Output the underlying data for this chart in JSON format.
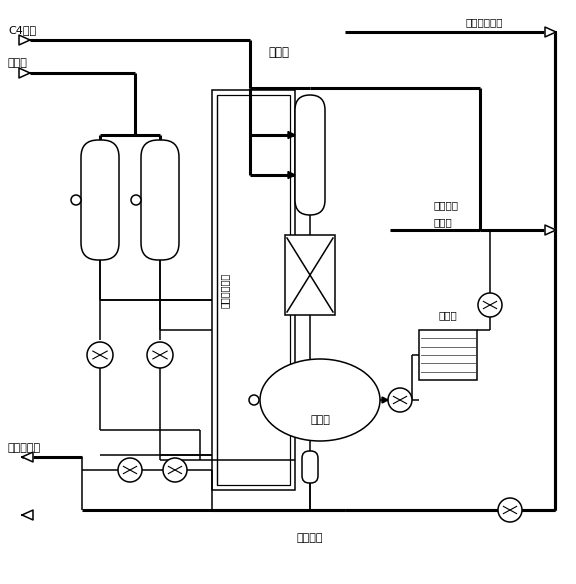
{
  "bg": "#ffffff",
  "lc": "#000000",
  "tlw": 2.2,
  "nlw": 1.1,
  "labels": {
    "c4_feed": "C4原料",
    "refrigerant": "制冷剂",
    "reactor": "反应器",
    "microchannel": "微通道反应区",
    "separator": "分高罐",
    "coalescer": "聚结器",
    "fresh_acid": "新鲜浓碗酸",
    "recycle_acid": "微环碗酸",
    "alkylate": "烷基化油",
    "to_sep_cool": "去分离、制冷",
    "to_sep": "去分离"
  },
  "fs": 7.5
}
